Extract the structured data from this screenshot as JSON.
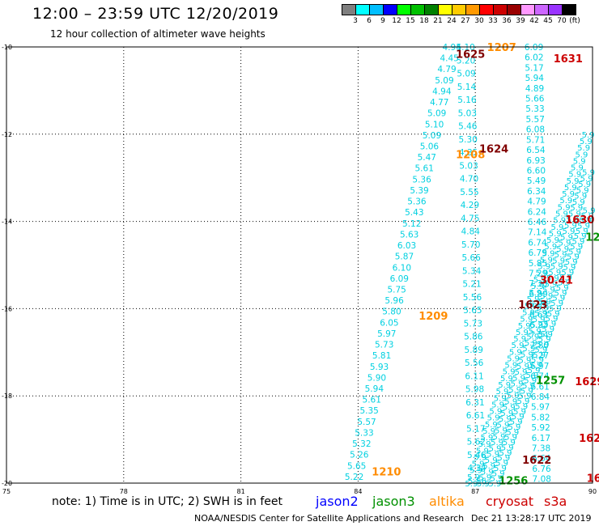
{
  "header": {
    "title": "12:00 – 23:59 UTC 12/20/2019",
    "subtitle": "12 hour collection of altimeter wave heights"
  },
  "scale": {
    "unit_label": "(ft)",
    "colors": [
      "#7f7f7f",
      "#00ffff",
      "#00bfff",
      "#0000ff",
      "#00ff00",
      "#00c000",
      "#008000",
      "#ffff00",
      "#ffcc00",
      "#ff9900",
      "#ff0000",
      "#cc0000",
      "#990000",
      "#ff99ff",
      "#cc66ff",
      "#9933ff",
      "#000000"
    ],
    "labels": [
      "3",
      "6",
      "9",
      "12",
      "15",
      "18",
      "21",
      "24",
      "27",
      "30",
      "33",
      "36",
      "39",
      "42",
      "45",
      "70"
    ]
  },
  "map": {
    "lat_labels": [
      "-10",
      "-12",
      "-14",
      "-16",
      "-18",
      "-20"
    ],
    "lon_labels": [
      "75",
      "78",
      "81",
      "84",
      "87",
      "90"
    ],
    "colors": {
      "grid": "#000000",
      "cyan": "#00d0e0",
      "altika": "#ff8c00",
      "jason3": "#009000",
      "cryosat": "#cc0000",
      "dark": "#800000"
    },
    "tracks": [
      {
        "name": "track-a",
        "color": "cyan",
        "values": [
          "4.94",
          "4.45",
          "4.79",
          "5.09",
          "4.94",
          "4.77",
          "5.09",
          "5.10",
          "5.09",
          "5.06",
          "5.47",
          "5.61",
          "5.36",
          "5.39",
          "5.36",
          "5.43",
          "5.12",
          "5.63",
          "6.03",
          "5.87",
          "6.10",
          "6.09",
          "5.75",
          "5.96",
          "5.80",
          "6.05",
          "5.97",
          "5.73",
          "5.81",
          "5.93",
          "5.90",
          "5.94",
          "5.61",
          "5.35",
          "5.57",
          "5.33",
          "5.32",
          "5.26",
          "5.65",
          "5.22"
        ]
      },
      {
        "name": "track-b",
        "color": "cyan",
        "values": [
          "5.10",
          "5.20",
          "5.09",
          "5.14",
          "5.16",
          "5.03",
          "5.46",
          "5.30",
          "4.35",
          "5.03",
          "4.70",
          "5.55",
          "4.29",
          "4.75",
          "4.84",
          "5.70",
          "5.66",
          "5.34",
          "5.21",
          "5.56",
          "5.65",
          "5.73",
          "5.86",
          "5.89",
          "5.56",
          "6.11",
          "5.98",
          "6.31",
          "6.61",
          "5.17",
          "5.62",
          "5.46",
          "4.34",
          "5.56"
        ]
      },
      {
        "name": "track-c",
        "color": "cyan",
        "values": [
          "6.09",
          "6.02",
          "5.17",
          "5.94",
          "4.89",
          "5.66",
          "5.33",
          "5.57",
          "6.08",
          "5.71",
          "6.54",
          "6.93",
          "6.60",
          "5.49",
          "6.34",
          "4.79",
          "6.24",
          "6.46",
          "7.14",
          "6.74",
          "6.79",
          "5.85",
          "7.29",
          "7.30",
          "6.89",
          "6.90",
          "6.63",
          "6.23",
          "7.54",
          "7.80",
          "7.27",
          "6.97",
          "6.74",
          "6.61",
          "6.84",
          "5.97",
          "5.82",
          "5.92",
          "6.17",
          "7.38",
          "6.64",
          "6.76",
          "7.08"
        ]
      }
    ],
    "labels": [
      {
        "text": "1207",
        "color": "altika",
        "lon": 87.3,
        "lat": -10.02
      },
      {
        "text": "1625",
        "color": "dark",
        "lon": 86.5,
        "lat": -10.18
      },
      {
        "text": "1631",
        "color": "cryosat",
        "lon": 89.0,
        "lat": -10.28
      },
      {
        "text": "1208",
        "color": "altika",
        "lon": 86.5,
        "lat": -12.48
      },
      {
        "text": "1624",
        "color": "dark",
        "lon": 87.1,
        "lat": -12.35
      },
      {
        "text": "1630",
        "color": "cryosat",
        "lon": 89.3,
        "lat": -13.97
      },
      {
        "text": "12",
        "color": "jason3",
        "lon": 89.82,
        "lat": -14.37
      },
      {
        "text": "30.41",
        "color": "cryosat",
        "lon": 88.65,
        "lat": -15.35
      },
      {
        "text": "1623",
        "color": "dark",
        "lon": 88.1,
        "lat": -15.92
      },
      {
        "text": "1209",
        "color": "altika",
        "lon": 85.55,
        "lat": -16.18
      },
      {
        "text": "1257",
        "color": "jason3",
        "lon": 88.55,
        "lat": -17.65
      },
      {
        "text": "1629",
        "color": "cryosat",
        "lon": 89.55,
        "lat": -17.68
      },
      {
        "text": "162",
        "color": "cryosat",
        "lon": 89.65,
        "lat": -18.98
      },
      {
        "text": "1622",
        "color": "dark",
        "lon": 88.2,
        "lat": -19.48
      },
      {
        "text": "1210",
        "color": "altika",
        "lon": 84.35,
        "lat": -19.75
      },
      {
        "text": "1256",
        "color": "jason3",
        "lon": 87.6,
        "lat": -19.95
      },
      {
        "text": "16",
        "color": "cryosat",
        "lon": 89.85,
        "lat": -19.9
      }
    ]
  },
  "footer": {
    "note": "note: 1) Time is in UTC; 2) SWH is in feet",
    "legend": [
      {
        "label": "jason2",
        "color": "#0000ff"
      },
      {
        "label": "jason3",
        "color": "#009000"
      },
      {
        "label": "altika",
        "color": "#ff8c00"
      },
      {
        "label": "cryosat",
        "color": "#cc0000"
      },
      {
        "label": "s3a",
        "color": "#cc0000"
      }
    ],
    "credit": "NOAA/NESDIS Center for Satellite Applications and Research",
    "timestamp": "Dec 21 13:28:17 UTC 2019"
  }
}
